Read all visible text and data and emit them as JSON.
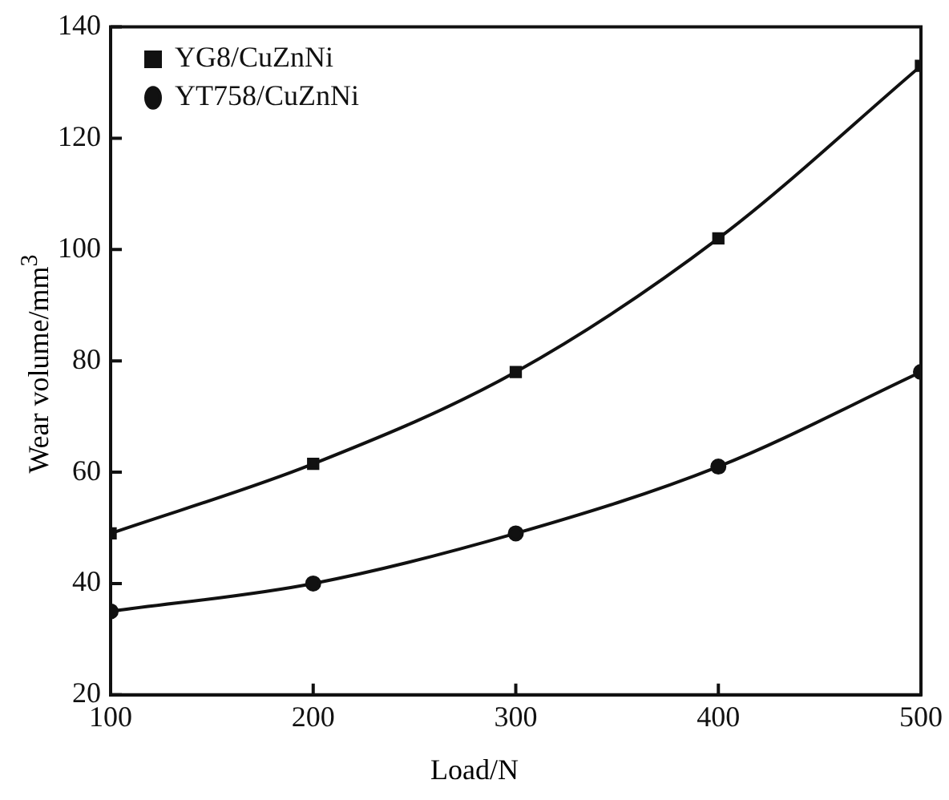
{
  "chart_data": {
    "type": "line",
    "xlabel": "Load/N",
    "ylabel": "Wear volume/mm$^{3}$",
    "x": [
      100,
      200,
      300,
      400,
      500
    ],
    "series": [
      {
        "name": "YG8/CuZnNi",
        "color": "#111111",
        "marker": "square",
        "values": [
          49,
          61.5,
          78,
          102,
          133
        ]
      },
      {
        "name": "YT758/CuZnNi",
        "color": "#111111",
        "marker": "circle",
        "values": [
          35,
          40,
          49,
          61,
          78
        ]
      }
    ],
    "xlim": [
      100,
      500
    ],
    "xticks": [
      100,
      200,
      300,
      400,
      500
    ],
    "ylim": [
      20,
      140
    ],
    "yticks": [
      20,
      40,
      60,
      80,
      100,
      120,
      140
    ],
    "grid": false,
    "legend": "top left",
    "line_style": "solid"
  }
}
